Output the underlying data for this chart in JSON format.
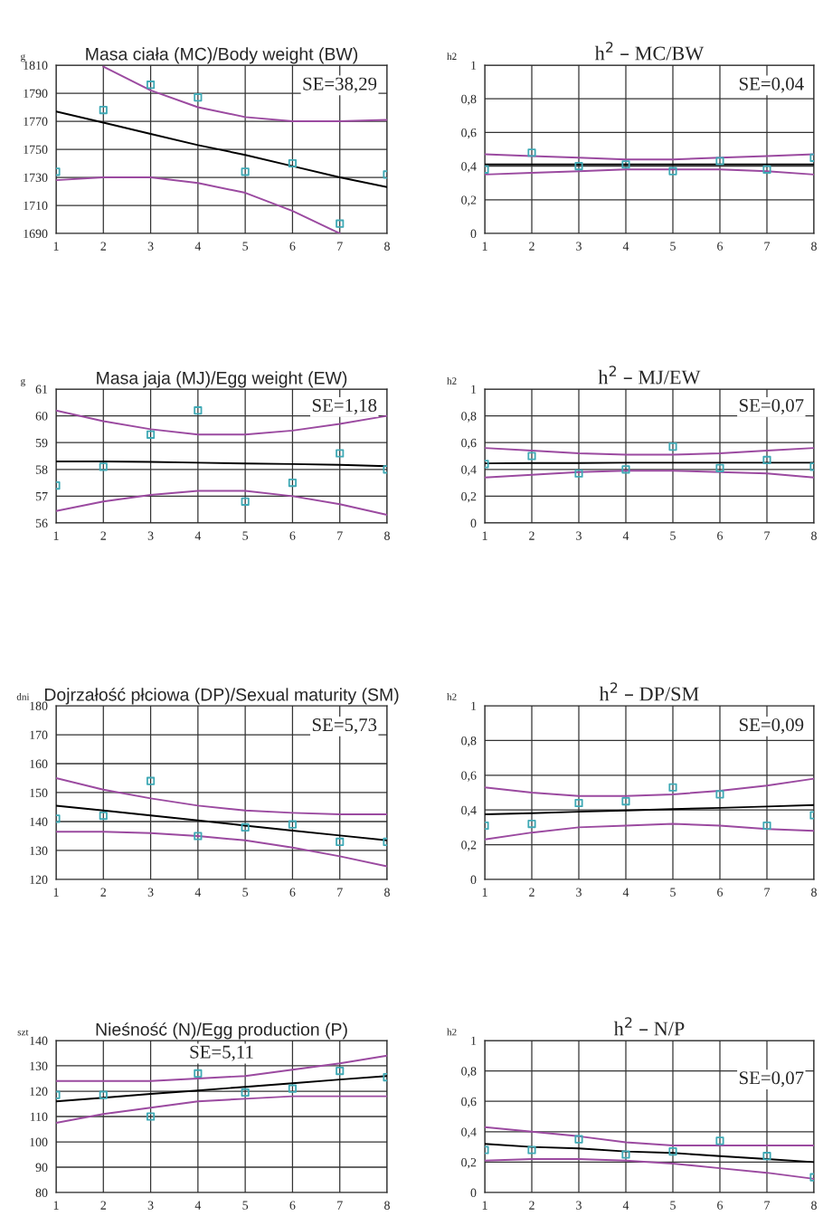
{
  "chart_data": [
    {
      "type": "line",
      "title": "Masa ciała (MC)/Body weight (BW)",
      "ylabel": "g",
      "annotations": [
        "SE=38,29"
      ],
      "x": [
        1,
        2,
        3,
        4,
        5,
        6,
        7,
        8
      ],
      "xlim": [
        1,
        8
      ],
      "xticks": [
        1,
        2,
        3,
        4,
        5,
        6,
        7,
        8
      ],
      "ylim": [
        1690,
        1810
      ],
      "yticks": [
        1690,
        1710,
        1730,
        1750,
        1770,
        1790,
        1810
      ],
      "grid": true,
      "series": [
        {
          "type": "scatter",
          "marker": "square",
          "color": "#3fa9b5",
          "values": [
            1734,
            1778,
            1796,
            1787,
            1734,
            1740,
            1697,
            1732
          ]
        },
        {
          "color": "#000000",
          "values": [
            1777,
            1769,
            1761,
            1753,
            1746,
            1738,
            1730,
            1723
          ]
        },
        {
          "color": "#9b4aa0",
          "values": [
            null,
            1809,
            1792,
            1780,
            1773,
            1770,
            1770,
            1771
          ]
        },
        {
          "color": "#9b4aa0",
          "values": [
            1728,
            1730,
            1730,
            1726,
            1719,
            1706,
            1690,
            null
          ]
        }
      ]
    },
    {
      "type": "line",
      "title": "h$^{2}$ – MC/BW",
      "ylabel": "h2",
      "annotations": [
        "SE=0,04"
      ],
      "x": [
        1,
        2,
        3,
        4,
        5,
        6,
        7,
        8
      ],
      "xlim": [
        1,
        8
      ],
      "xticks": [
        1,
        2,
        3,
        4,
        5,
        6,
        7,
        8
      ],
      "ylim": [
        0,
        1
      ],
      "yticks": [
        0,
        {
          "value": 0.2,
          "label": "0,2"
        },
        {
          "value": 0.4,
          "label": "0,4"
        },
        {
          "value": 0.6,
          "label": "0,6"
        },
        {
          "value": 0.8,
          "label": "0,8"
        },
        1
      ],
      "grid": true,
      "series": [
        {
          "type": "scatter",
          "marker": "square",
          "color": "#3fa9b5",
          "values": [
            0.38,
            0.48,
            0.4,
            0.41,
            0.37,
            0.43,
            0.38,
            0.45
          ]
        },
        {
          "color": "#000000",
          "values": [
            0.41,
            0.41,
            0.41,
            0.41,
            0.41,
            0.41,
            0.41,
            0.41
          ]
        },
        {
          "color": "#9b4aa0",
          "values": [
            0.47,
            0.46,
            0.45,
            0.44,
            0.44,
            0.45,
            0.46,
            0.47
          ]
        },
        {
          "color": "#9b4aa0",
          "values": [
            0.35,
            0.36,
            0.37,
            0.38,
            0.38,
            0.38,
            0.37,
            0.35
          ]
        }
      ]
    },
    {
      "type": "line",
      "title": "Masa jaja (MJ)/Egg weight (EW)",
      "ylabel": "g",
      "annotations": [
        "SE=1,18"
      ],
      "x": [
        1,
        2,
        3,
        4,
        5,
        6,
        7,
        8
      ],
      "xlim": [
        1,
        8
      ],
      "xticks": [
        1,
        2,
        3,
        4,
        5,
        6,
        7,
        8
      ],
      "ylim": [
        56,
        61
      ],
      "yticks": [
        56,
        57,
        58,
        59,
        60,
        61
      ],
      "grid": true,
      "series": [
        {
          "type": "scatter",
          "marker": "square",
          "color": "#3fa9b5",
          "values": [
            57.4,
            58.1,
            59.3,
            60.2,
            56.8,
            57.5,
            58.6,
            58.0
          ]
        },
        {
          "color": "#000000",
          "values": [
            58.3,
            58.3,
            58.28,
            58.25,
            58.22,
            58.2,
            58.17,
            58.12
          ]
        },
        {
          "color": "#9b4aa0",
          "values": [
            60.2,
            59.8,
            59.5,
            59.3,
            59.3,
            59.45,
            59.7,
            60.0
          ]
        },
        {
          "color": "#9b4aa0",
          "values": [
            56.45,
            56.8,
            57.05,
            57.2,
            57.2,
            57.0,
            56.7,
            56.3
          ]
        }
      ]
    },
    {
      "type": "line",
      "title": "h$^{2}$ – MJ/EW",
      "ylabel": "h2",
      "annotations": [
        "SE=0,07"
      ],
      "x": [
        1,
        2,
        3,
        4,
        5,
        6,
        7,
        8
      ],
      "xlim": [
        1,
        8
      ],
      "xticks": [
        1,
        2,
        3,
        4,
        5,
        6,
        7,
        8
      ],
      "ylim": [
        0,
        1
      ],
      "yticks": [
        0,
        {
          "value": 0.2,
          "label": "0,2"
        },
        {
          "value": 0.4,
          "label": "0,4"
        },
        {
          "value": 0.6,
          "label": "0,6"
        },
        {
          "value": 0.8,
          "label": "0,8"
        },
        1
      ],
      "grid": true,
      "series": [
        {
          "type": "scatter",
          "marker": "square",
          "color": "#3fa9b5",
          "values": [
            0.44,
            0.5,
            0.37,
            0.4,
            0.57,
            0.41,
            0.47,
            0.42
          ]
        },
        {
          "color": "#000000",
          "values": [
            0.445,
            0.447,
            0.448,
            0.45,
            0.45,
            0.45,
            0.45,
            0.45
          ]
        },
        {
          "color": "#9b4aa0",
          "values": [
            0.56,
            0.54,
            0.52,
            0.51,
            0.51,
            0.52,
            0.54,
            0.56
          ]
        },
        {
          "color": "#9b4aa0",
          "values": [
            0.34,
            0.36,
            0.38,
            0.39,
            0.39,
            0.38,
            0.37,
            0.34
          ]
        }
      ]
    },
    {
      "type": "line",
      "title": "Dojrzałość płciowa (DP)/Sexual maturity (SM)",
      "ylabel": "dni",
      "annotations": [
        "SE=5,73"
      ],
      "x": [
        1,
        2,
        3,
        4,
        5,
        6,
        7,
        8
      ],
      "xlim": [
        1,
        8
      ],
      "xticks": [
        1,
        2,
        3,
        4,
        5,
        6,
        7,
        8
      ],
      "ylim": [
        120,
        180
      ],
      "yticks": [
        120,
        130,
        140,
        150,
        160,
        170,
        180
      ],
      "grid": true,
      "series": [
        {
          "type": "scatter",
          "marker": "square",
          "color": "#3fa9b5",
          "values": [
            141,
            142,
            154,
            135,
            138,
            139,
            133,
            133
          ]
        },
        {
          "color": "#000000",
          "values": [
            145.5,
            143.8,
            142.1,
            140.4,
            138.6,
            136.9,
            135.2,
            133.5
          ]
        },
        {
          "color": "#9b4aa0",
          "values": [
            155,
            151,
            148,
            145.5,
            143.8,
            143,
            142.5,
            142.5
          ]
        },
        {
          "color": "#9b4aa0",
          "values": [
            136.5,
            136.5,
            136,
            135,
            133.5,
            131,
            128,
            124.5
          ]
        }
      ]
    },
    {
      "type": "line",
      "title": "h$^{2}$ – DP/SM",
      "ylabel": "h2",
      "annotations": [
        "SE=0,09"
      ],
      "x": [
        1,
        2,
        3,
        4,
        5,
        6,
        7,
        8
      ],
      "xlim": [
        1,
        8
      ],
      "xticks": [
        1,
        2,
        3,
        4,
        5,
        6,
        7,
        8
      ],
      "ylim": [
        0,
        1
      ],
      "yticks": [
        0,
        {
          "value": 0.2,
          "label": "0,2"
        },
        {
          "value": 0.4,
          "label": "0,4"
        },
        {
          "value": 0.6,
          "label": "0,6"
        },
        {
          "value": 0.8,
          "label": "0,8"
        },
        1
      ],
      "grid": true,
      "series": [
        {
          "type": "scatter",
          "marker": "square",
          "color": "#3fa9b5",
          "values": [
            0.31,
            0.32,
            0.44,
            0.45,
            0.53,
            0.49,
            0.31,
            0.37
          ]
        },
        {
          "color": "#000000",
          "values": [
            0.375,
            0.382,
            0.39,
            0.397,
            0.405,
            0.412,
            0.42,
            0.428
          ]
        },
        {
          "color": "#9b4aa0",
          "values": [
            0.53,
            0.5,
            0.48,
            0.48,
            0.49,
            0.51,
            0.54,
            0.58
          ]
        },
        {
          "color": "#9b4aa0",
          "values": [
            0.23,
            0.27,
            0.3,
            0.31,
            0.32,
            0.31,
            0.29,
            0.28
          ]
        }
      ]
    },
    {
      "type": "line",
      "title": "Nieśność (N)/Egg production (P)",
      "ylabel": "szt",
      "annotations": [
        "SE=5,11"
      ],
      "x": [
        1,
        2,
        3,
        4,
        5,
        6,
        7,
        8
      ],
      "xlim": [
        1,
        8
      ],
      "xticks": [
        1,
        2,
        3,
        4,
        5,
        6,
        7,
        8
      ],
      "ylim": [
        80,
        140
      ],
      "yticks": [
        80,
        90,
        100,
        110,
        120,
        130,
        140
      ],
      "grid": true,
      "series": [
        {
          "type": "scatter",
          "marker": "square",
          "color": "#3fa9b5",
          "values": [
            118.5,
            118.5,
            110,
            127,
            119.5,
            121,
            128,
            125.5
          ]
        },
        {
          "color": "#000000",
          "values": [
            116,
            117.4,
            118.9,
            120.3,
            121.7,
            123.1,
            124.6,
            126
          ]
        },
        {
          "color": "#9b4aa0",
          "values": [
            124,
            124,
            124,
            125,
            126,
            128.5,
            131,
            134
          ]
        },
        {
          "color": "#9b4aa0",
          "values": [
            107.5,
            111,
            113.5,
            116,
            117,
            118,
            118,
            118
          ]
        }
      ]
    },
    {
      "type": "line",
      "title": "h$^{2}$ – N/P",
      "ylabel": "h2",
      "annotations": [
        "SE=0,07"
      ],
      "x": [
        1,
        2,
        3,
        4,
        5,
        6,
        7,
        8
      ],
      "xlim": [
        1,
        8
      ],
      "xticks": [
        1,
        2,
        3,
        4,
        5,
        6,
        7,
        8
      ],
      "ylim": [
        0,
        1
      ],
      "yticks": [
        0,
        {
          "value": 0.2,
          "label": "0,2"
        },
        {
          "value": 0.4,
          "label": "0,4"
        },
        {
          "value": 0.6,
          "label": "0,6"
        },
        {
          "value": 0.8,
          "label": "0,8"
        },
        1
      ],
      "grid": true,
      "series": [
        {
          "type": "scatter",
          "marker": "square",
          "color": "#3fa9b5",
          "values": [
            0.28,
            0.28,
            0.35,
            0.25,
            0.27,
            0.34,
            0.24,
            0.1
          ]
        },
        {
          "color": "#000000",
          "values": [
            0.32,
            0.3,
            0.29,
            0.27,
            0.26,
            0.24,
            0.22,
            0.2
          ]
        },
        {
          "color": "#9b4aa0",
          "values": [
            0.43,
            0.4,
            0.37,
            0.33,
            0.31,
            0.31,
            0.31,
            0.31
          ]
        },
        {
          "color": "#9b4aa0",
          "values": [
            0.21,
            0.22,
            0.22,
            0.21,
            0.19,
            0.16,
            0.13,
            0.09
          ]
        }
      ]
    }
  ]
}
